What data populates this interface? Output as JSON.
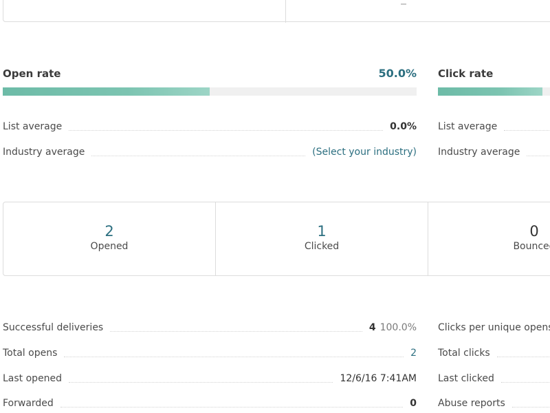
{
  "open_rate": {
    "title": "Open rate",
    "value": "50.0%",
    "fill_percent": 50,
    "list_average_label": "List average",
    "list_average_value": "0.0%",
    "industry_average_label": "Industry average",
    "industry_average_value": "(Select your industry)"
  },
  "click_rate": {
    "title": "Click rate",
    "list_average_label": "List average",
    "industry_average_label": "Industry average"
  },
  "counts": [
    {
      "value": "2",
      "label": "Opened"
    },
    {
      "value": "1",
      "label": "Clicked"
    },
    {
      "value": "0",
      "label": "Bounced"
    }
  ],
  "delivery_stats": {
    "successful_deliveries_label": "Successful deliveries",
    "successful_deliveries_count": "4",
    "successful_deliveries_percent": "100.0%",
    "total_opens_label": "Total opens",
    "total_opens_value": "2",
    "last_opened_label": "Last opened",
    "last_opened_value": "12/6/16 7:41AM",
    "forwarded_label": "Forwarded",
    "forwarded_value": "0"
  },
  "click_stats": {
    "clicks_per_unique_opens_label": "Clicks per unique opens",
    "total_clicks_label": "Total clicks",
    "last_clicked_label": "Last clicked",
    "abuse_reports_label": "Abuse reports"
  },
  "colors": {
    "accent": "#2c6f80",
    "bar_fill": "#7cc4b1",
    "bar_track": "#f0f0f0",
    "border": "#dcdcdc"
  }
}
